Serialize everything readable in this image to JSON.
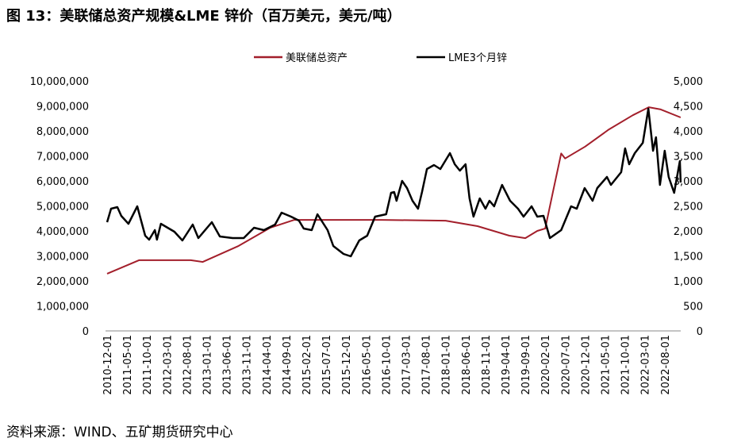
{
  "chart_data": {
    "type": "line",
    "title": "图 13：美联储总资产规模&LME 锌价（百万美元，美元/吨）",
    "source": "资料来源：WIND、五矿期货研究中心",
    "legend_position": "top",
    "grid": false,
    "y_left": {
      "range": [
        0,
        10000000
      ],
      "ticks": [
        "0",
        "1,000,000",
        "2,000,000",
        "3,000,000",
        "4,000,000",
        "5,000,000",
        "6,000,000",
        "7,000,000",
        "8,000,000",
        "9,000,000",
        "10,000,000"
      ]
    },
    "y_right": {
      "range": [
        0,
        5000
      ],
      "ticks": [
        "0",
        "500",
        "1,000",
        "1,500",
        "2,000",
        "2,500",
        "3,000",
        "3,500",
        "4,000",
        "4,500",
        "5,000"
      ]
    },
    "x_ticks": [
      "2010-12-01",
      "2011-05-01",
      "2011-10-01",
      "2012-03-01",
      "2012-08-01",
      "2013-01-01",
      "2013-06-01",
      "2013-11-01",
      "2014-04-01",
      "2014-09-01",
      "2015-02-01",
      "2015-07-01",
      "2015-12-01",
      "2016-05-01",
      "2016-10-01",
      "2017-03-01",
      "2017-08-01",
      "2018-01-01",
      "2018-06-01",
      "2018-11-01",
      "2019-04-01",
      "2019-09-01",
      "2020-02-01",
      "2020-07-01",
      "2020-12-01",
      "2021-05-01",
      "2021-10-01",
      "2022-03-01",
      "2022-08-01"
    ],
    "series": [
      {
        "name": "美联储总资产",
        "axis": "left",
        "color": "#a31f2b",
        "x": [
          "2010-12-01",
          "2011-08-01",
          "2012-01-01",
          "2012-09-01",
          "2012-12-01",
          "2013-09-01",
          "2014-05-01",
          "2014-11-01",
          "2015-05-01",
          "2016-09-01",
          "2018-01-01",
          "2018-09-01",
          "2019-05-01",
          "2019-09-01",
          "2019-12-01",
          "2020-02-01",
          "2020-04-01",
          "2020-06-01",
          "2020-07-01",
          "2020-12-01",
          "2021-06-01",
          "2021-12-01",
          "2022-04-01",
          "2022-07-01",
          "2022-12-01"
        ],
        "y": [
          2290000,
          2830000,
          2830000,
          2830000,
          2760000,
          3400000,
          4130000,
          4440000,
          4440000,
          4440000,
          4410000,
          4190000,
          3810000,
          3710000,
          4000000,
          4100000,
          5600000,
          7100000,
          6900000,
          7370000,
          8060000,
          8630000,
          8950000,
          8860000,
          8540000
        ]
      },
      {
        "name": "LME3个月锌",
        "axis": "right",
        "color": "#000000",
        "x": [
          "2010-12-01",
          "2011-01-01",
          "2011-02-18",
          "2011-03-18",
          "2011-05-12",
          "2011-07-18",
          "2011-09-18",
          "2011-10-18",
          "2011-12-01",
          "2011-12-16",
          "2012-01-16",
          "2012-04-28",
          "2012-06-28",
          "2012-09-16",
          "2012-10-28",
          "2013-02-10",
          "2013-04-10",
          "2013-07-16",
          "2013-10-10",
          "2013-12-28",
          "2014-03-12",
          "2014-06-06",
          "2014-07-25",
          "2014-10-06",
          "2014-12-06",
          "2015-01-12",
          "2015-03-12",
          "2015-04-25",
          "2015-07-12",
          "2015-08-25",
          "2015-11-12",
          "2016-01-06",
          "2016-03-10",
          "2016-05-10",
          "2016-07-10",
          "2016-10-03",
          "2016-11-10",
          "2016-12-03",
          "2016-12-21",
          "2017-02-03",
          "2017-03-10",
          "2017-04-21",
          "2017-06-03",
          "2017-07-03",
          "2017-08-10",
          "2017-10-03",
          "2017-11-21",
          "2018-02-03",
          "2018-03-10",
          "2018-04-18",
          "2018-06-01",
          "2018-07-01",
          "2018-08-01",
          "2018-09-18",
          "2018-11-01",
          "2018-12-01",
          "2019-01-06",
          "2019-03-06",
          "2019-05-06",
          "2019-07-06",
          "2019-08-18",
          "2019-10-18",
          "2019-12-01",
          "2020-01-18",
          "2020-03-06",
          "2020-06-01",
          "2020-08-16",
          "2020-09-28",
          "2020-11-28",
          "2021-01-28",
          "2021-03-03",
          "2021-05-16",
          "2021-06-16",
          "2021-09-03",
          "2021-10-03",
          "2021-11-03",
          "2021-12-16",
          "2022-02-16",
          "2022-03-28",
          "2022-05-03",
          "2022-05-25",
          "2022-06-25",
          "2022-08-01",
          "2022-09-01",
          "2022-10-12",
          "2022-11-25",
          "2022-12-01"
        ],
        "y": [
          2175,
          2444,
          2476,
          2300,
          2143,
          2492,
          1905,
          1825,
          2016,
          1825,
          2143,
          1984,
          1810,
          2127,
          1857,
          2175,
          1889,
          1857,
          1857,
          2063,
          2016,
          2127,
          2365,
          2286,
          2206,
          2048,
          2016,
          2333,
          2016,
          1698,
          1540,
          1492,
          1810,
          1905,
          2286,
          2333,
          2762,
          2778,
          2603,
          3000,
          2857,
          2603,
          2444,
          2778,
          3238,
          3317,
          3238,
          3556,
          3333,
          3206,
          3333,
          2651,
          2286,
          2651,
          2444,
          2603,
          2492,
          2921,
          2603,
          2444,
          2286,
          2492,
          2286,
          2302,
          1857,
          2016,
          2492,
          2444,
          2857,
          2603,
          2857,
          3079,
          2921,
          3175,
          3651,
          3333,
          3556,
          3762,
          4444,
          3603,
          3873,
          2921,
          3603,
          3079,
          2762,
          3397,
          2968
        ]
      }
    ]
  }
}
